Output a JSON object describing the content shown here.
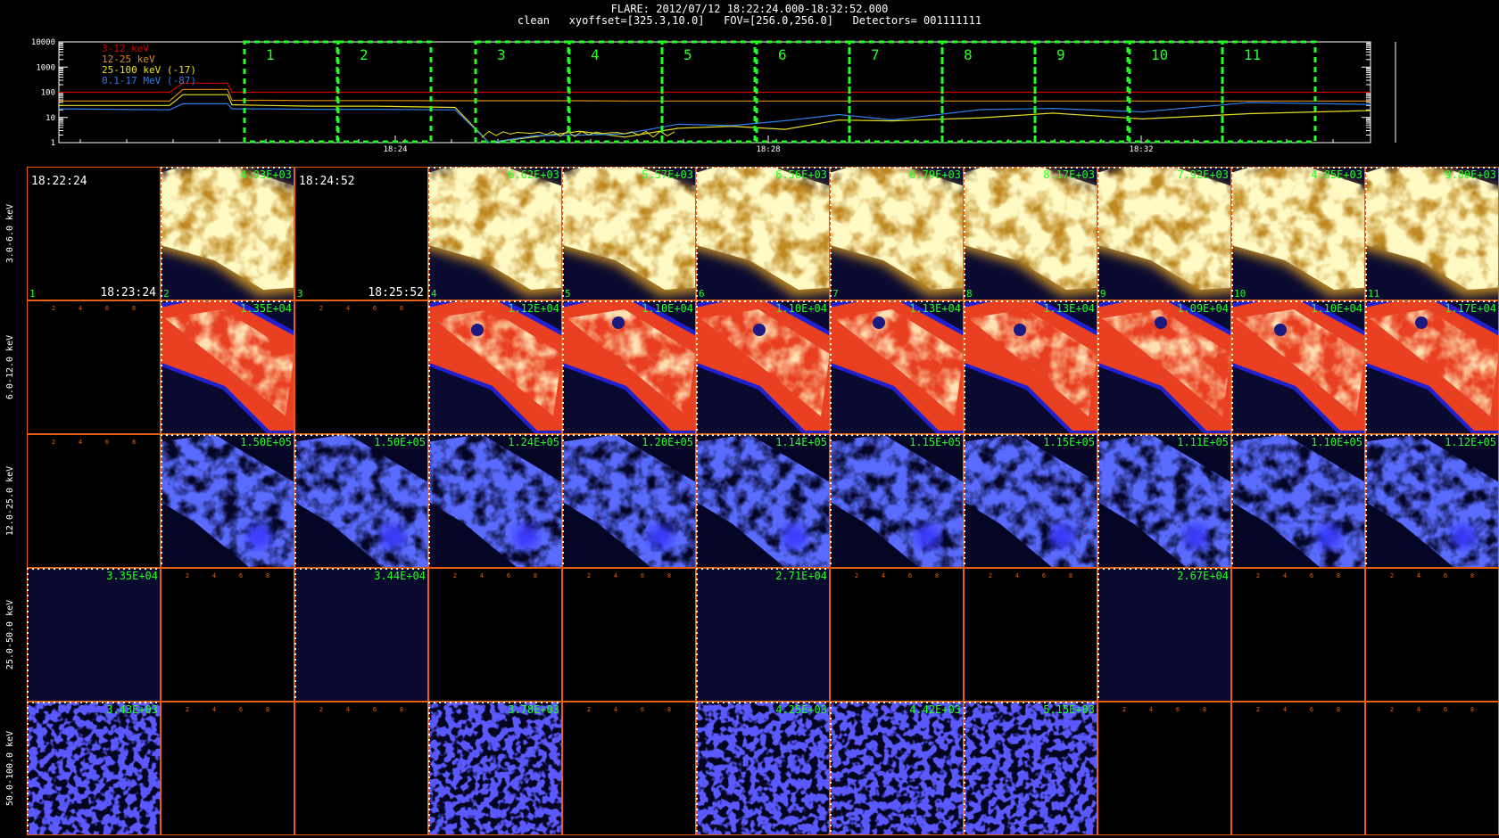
{
  "header": {
    "line1": "FLARE: 2012/07/12 18:22:24.000-18:32:52.000",
    "line2": "clean   xyoffset=[325.3,10.0]   FOV=[256.0,256.0]   Detectors= 001111111"
  },
  "colors": {
    "background": "#000000",
    "frame_orange": "#e8600c",
    "interval_green": "#22ff22",
    "curve_3_12": "#d00000",
    "curve_12_25": "#e08a10",
    "curve_25_100": "#e8e020",
    "curve_01_17": "#2c7ee8"
  },
  "chart_data": [
    {
      "type": "line",
      "y_scale": "log",
      "ylim": [
        1,
        10000
      ],
      "y_ticks": [
        "10000",
        "1000",
        "100",
        "10",
        "1"
      ],
      "x_tick_labels": [
        "18:24",
        "18:28",
        "18:32"
      ],
      "legend": [
        {
          "name": "3-12 keV",
          "color": "#d00000"
        },
        {
          "name": "12-25 keV",
          "color": "#e08a10"
        },
        {
          "name": "25-100 keV (-17)",
          "color": "#e8e020"
        },
        {
          "name": "0.1-17 MeV (-87)",
          "color": "#2c7ee8"
        }
      ],
      "time_interval_labels": [
        "1",
        "2",
        "3",
        "4",
        "5",
        "6",
        "7",
        "8",
        "9",
        "10",
        "11"
      ],
      "series": [
        {
          "name": "3-12 keV",
          "y": [
            100,
            100,
            230,
            230,
            100,
            100,
            100,
            100,
            100,
            100,
            100,
            100,
            100,
            100,
            100,
            100,
            100,
            100,
            100,
            100,
            100,
            100,
            100
          ]
        },
        {
          "name": "12-25 keV",
          "y": [
            45,
            45,
            130,
            130,
            48,
            48,
            47,
            47,
            46,
            46,
            46,
            46,
            45,
            45,
            45,
            45,
            45,
            45,
            45,
            45,
            45,
            45,
            45
          ]
        },
        {
          "name": "25-100 keV (-17)",
          "y": [
            30,
            30,
            80,
            80,
            32,
            30,
            28,
            28,
            25,
            1,
            1.8,
            2.2,
            2.5,
            3.2,
            4,
            5,
            6,
            8,
            12,
            11,
            12,
            14,
            15
          ]
        },
        {
          "name": "0.1-17 MeV (-87)",
          "y": [
            22,
            20,
            35,
            35,
            22,
            22,
            21,
            21,
            20,
            1.2,
            1.5,
            2,
            3,
            4,
            6,
            8,
            10,
            12,
            18,
            20,
            25,
            30,
            35
          ]
        }
      ]
    },
    {
      "type": "heatmap",
      "row_labels": [
        "3.0-6.0 keV",
        "6.0-12.0 keV",
        "12.0-25.0 keV",
        "25.0-50.0 keV",
        "50.0-100.0 keV"
      ],
      "interval_numbers": [
        "1",
        "2",
        "3",
        "4",
        "5",
        "6",
        "7",
        "8",
        "9",
        "10",
        "11"
      ],
      "times": {
        "start_1": "18:22:24",
        "end_1": "18:23:24",
        "start_3": "18:24:52",
        "end_3": "18:25:52"
      },
      "peak_values": [
        [
          "",
          "4.93E+03",
          "",
          "6.62E+03",
          "5.57E+03",
          "6.56E+03",
          "6.79E+03",
          "8.17E+03",
          "7.92E+03",
          "4.85E+03",
          "9.80E+03"
        ],
        [
          "",
          "1.35E+04",
          "",
          "1.12E+04",
          "1.10E+04",
          "1.10E+04",
          "1.13E+04",
          "1.13E+04",
          "1.09E+04",
          "1.10E+04",
          "1.17E+04"
        ],
        [
          "",
          "1.50E+05",
          "1.50E+05",
          "1.24E+05",
          "1.20E+05",
          "1.14E+05",
          "1.15E+05",
          "1.15E+05",
          "1.11E+05",
          "1.10E+05",
          "1.12E+05"
        ],
        [
          "3.35E+04",
          "",
          "3.44E+04",
          "",
          "",
          "2.71E+04",
          "",
          "",
          "2.67E+04",
          "",
          ""
        ],
        [
          "3.43E+03",
          "",
          "",
          "3.78E+03",
          "",
          "4.25E+03",
          "4.42E+03",
          "5.15E+03",
          "",
          "",
          ""
        ]
      ],
      "axis_ticks": [
        "2",
        "4",
        "6",
        "8"
      ]
    }
  ]
}
